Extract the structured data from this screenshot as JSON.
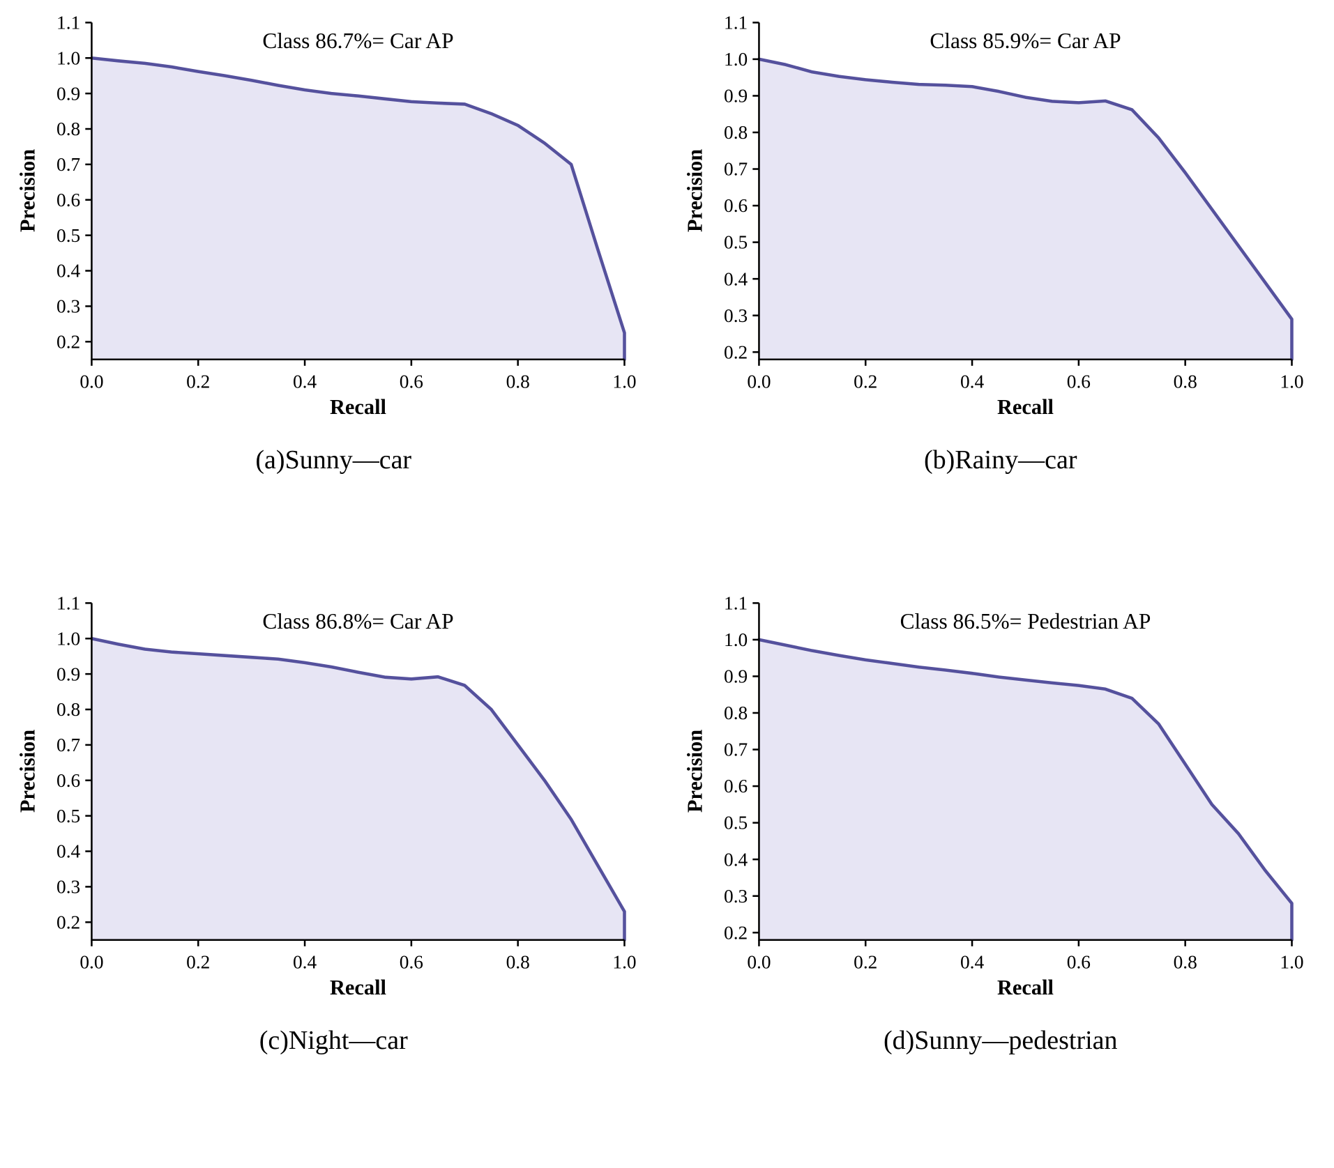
{
  "figure": {
    "background": "#ffffff",
    "axis_color": "#000000"
  },
  "chart_data": [
    {
      "type": "area",
      "title": "Class 86.7%= Car AP",
      "caption": "(a)Sunny—car",
      "xlabel": "Recall",
      "ylabel": "Precision",
      "xlim": [
        0.0,
        1.0
      ],
      "ylim": [
        0.15,
        1.1
      ],
      "xticks": [
        "0.0",
        "0.2",
        "0.4",
        "0.6",
        "0.8",
        "1.0"
      ],
      "yticks": [
        "0.2",
        "0.3",
        "0.4",
        "0.5",
        "0.6",
        "0.7",
        "0.8",
        "0.9",
        "1.0",
        "1.1"
      ],
      "line_color": "#55519d",
      "fill_color": "#e7e5f4",
      "legend": "none",
      "grid": false,
      "x": [
        0.0,
        0.05,
        0.1,
        0.15,
        0.2,
        0.25,
        0.3,
        0.35,
        0.4,
        0.45,
        0.5,
        0.55,
        0.6,
        0.65,
        0.7,
        0.75,
        0.8,
        0.85,
        0.9,
        0.95,
        1.0
      ],
      "y": [
        1.0,
        0.992,
        0.985,
        0.975,
        0.962,
        0.95,
        0.937,
        0.923,
        0.91,
        0.9,
        0.893,
        0.885,
        0.877,
        0.873,
        0.87,
        0.843,
        0.81,
        0.76,
        0.7,
        0.46,
        0.225
      ]
    },
    {
      "type": "area",
      "title": "Class 85.9%= Car AP",
      "caption": "(b)Rainy—car",
      "xlabel": "Recall",
      "ylabel": "Precision",
      "xlim": [
        0.0,
        1.0
      ],
      "ylim": [
        0.18,
        1.1
      ],
      "xticks": [
        "0.0",
        "0.2",
        "0.4",
        "0.6",
        "0.8",
        "1.0"
      ],
      "yticks": [
        "0.2",
        "0.3",
        "0.4",
        "0.5",
        "0.6",
        "0.7",
        "0.8",
        "0.9",
        "1.0",
        "1.1"
      ],
      "line_color": "#55519d",
      "fill_color": "#e7e5f4",
      "legend": "none",
      "grid": false,
      "x": [
        0.0,
        0.05,
        0.1,
        0.15,
        0.2,
        0.25,
        0.3,
        0.35,
        0.4,
        0.45,
        0.5,
        0.55,
        0.6,
        0.65,
        0.7,
        0.75,
        0.8,
        0.85,
        0.9,
        0.95,
        1.0
      ],
      "y": [
        1.0,
        0.985,
        0.965,
        0.953,
        0.944,
        0.937,
        0.931,
        0.929,
        0.925,
        0.912,
        0.896,
        0.885,
        0.881,
        0.886,
        0.862,
        0.785,
        0.69,
        0.59,
        0.49,
        0.39,
        0.29
      ]
    },
    {
      "type": "area",
      "title": "Class 86.8%= Car AP",
      "caption": "(c)Night—car",
      "xlabel": "Recall",
      "ylabel": "Precision",
      "xlim": [
        0.0,
        1.0
      ],
      "ylim": [
        0.15,
        1.1
      ],
      "xticks": [
        "0.0",
        "0.2",
        "0.4",
        "0.6",
        "0.8",
        "1.0"
      ],
      "yticks": [
        "0.2",
        "0.3",
        "0.4",
        "0.5",
        "0.6",
        "0.7",
        "0.8",
        "0.9",
        "1.0",
        "1.1"
      ],
      "line_color": "#55519d",
      "fill_color": "#e7e5f4",
      "legend": "none",
      "grid": false,
      "x": [
        0.0,
        0.05,
        0.1,
        0.15,
        0.2,
        0.25,
        0.3,
        0.35,
        0.4,
        0.45,
        0.5,
        0.55,
        0.6,
        0.65,
        0.7,
        0.75,
        0.8,
        0.85,
        0.9,
        0.95,
        1.0
      ],
      "y": [
        1.0,
        0.984,
        0.97,
        0.962,
        0.957,
        0.952,
        0.947,
        0.942,
        0.932,
        0.92,
        0.905,
        0.891,
        0.886,
        0.892,
        0.868,
        0.8,
        0.7,
        0.6,
        0.49,
        0.36,
        0.23
      ]
    },
    {
      "type": "area",
      "title": "Class 86.5%= Pedestrian AP",
      "caption": "(d)Sunny—pedestrian",
      "xlabel": "Recall",
      "ylabel": "Precision",
      "xlim": [
        0.0,
        1.0
      ],
      "ylim": [
        0.18,
        1.1
      ],
      "xticks": [
        "0.0",
        "0.2",
        "0.4",
        "0.6",
        "0.8",
        "1.0"
      ],
      "yticks": [
        "0.2",
        "0.3",
        "0.4",
        "0.5",
        "0.6",
        "0.7",
        "0.8",
        "0.9",
        "1.0",
        "1.1"
      ],
      "line_color": "#55519d",
      "fill_color": "#e7e5f4",
      "legend": "none",
      "grid": false,
      "x": [
        0.0,
        0.05,
        0.1,
        0.15,
        0.2,
        0.25,
        0.3,
        0.35,
        0.4,
        0.45,
        0.5,
        0.55,
        0.6,
        0.65,
        0.7,
        0.75,
        0.8,
        0.85,
        0.9,
        0.95,
        1.0
      ],
      "y": [
        1.0,
        0.985,
        0.97,
        0.957,
        0.945,
        0.935,
        0.925,
        0.917,
        0.908,
        0.898,
        0.89,
        0.882,
        0.875,
        0.865,
        0.84,
        0.77,
        0.66,
        0.55,
        0.47,
        0.37,
        0.28
      ]
    }
  ]
}
